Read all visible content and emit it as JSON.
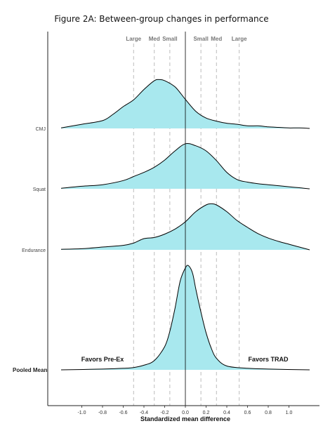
{
  "title": "Figure 2A: Between-group changes in performance",
  "chart_data": {
    "type": "density_ridgeline",
    "title": "Figure 2A: Between-group changes in performance",
    "xlabel": "Standardized mean difference",
    "ylabel": "",
    "xlim": [
      -1.2,
      1.2
    ],
    "x_ticks": [
      "-1.0",
      "-0.8",
      "-0.6",
      "-0.4",
      "-0.2",
      "0.0",
      "0.2",
      "0.4",
      "0.6",
      "0.8",
      "1.0"
    ],
    "categories": [
      "CMJ",
      "Squat",
      "Endurance",
      "Pooled Mean"
    ],
    "reference_lines": [
      {
        "label": "Large",
        "x": -0.5
      },
      {
        "label": "Med",
        "x": -0.3
      },
      {
        "label": "Small",
        "x": -0.15
      },
      {
        "label": "",
        "x": 0.0
      },
      {
        "label": "Small",
        "x": 0.15
      },
      {
        "label": "Med",
        "x": 0.3
      },
      {
        "label": "Large",
        "x": 0.52
      }
    ],
    "annotations": {
      "left": "Favors Pre-Ex",
      "right": "Favors TRAD"
    },
    "fill_color": "#a8e8ee",
    "series": [
      {
        "name": "CMJ",
        "x": [
          -1.2,
          -1.0,
          -0.8,
          -0.7,
          -0.6,
          -0.5,
          -0.4,
          -0.3,
          -0.25,
          -0.2,
          -0.1,
          0.0,
          0.1,
          0.2,
          0.3,
          0.4,
          0.5,
          0.6,
          0.7,
          0.8,
          0.9,
          1.0,
          1.1,
          1.2
        ],
        "density": [
          0.01,
          0.08,
          0.15,
          0.27,
          0.42,
          0.55,
          0.75,
          0.92,
          0.94,
          0.92,
          0.8,
          0.56,
          0.33,
          0.2,
          0.14,
          0.1,
          0.08,
          0.05,
          0.05,
          0.03,
          0.02,
          0.01,
          0.01,
          0.0
        ]
      },
      {
        "name": "Squat",
        "x": [
          -1.2,
          -1.0,
          -0.8,
          -0.6,
          -0.5,
          -0.4,
          -0.3,
          -0.2,
          -0.1,
          0.0,
          0.1,
          0.2,
          0.3,
          0.4,
          0.5,
          0.6,
          0.7,
          0.8,
          0.9,
          1.0,
          1.1,
          1.2
        ],
        "density": [
          0.01,
          0.05,
          0.08,
          0.16,
          0.24,
          0.32,
          0.42,
          0.56,
          0.74,
          0.88,
          0.84,
          0.74,
          0.55,
          0.32,
          0.18,
          0.13,
          0.1,
          0.08,
          0.06,
          0.04,
          0.02,
          0.0
        ]
      },
      {
        "name": "Endurance",
        "x": [
          -1.2,
          -1.0,
          -0.8,
          -0.6,
          -0.5,
          -0.4,
          -0.3,
          -0.2,
          -0.1,
          0.0,
          0.1,
          0.2,
          0.25,
          0.3,
          0.4,
          0.5,
          0.6,
          0.7,
          0.8,
          0.9,
          1.0,
          1.1,
          1.2
        ],
        "density": [
          0.01,
          0.02,
          0.05,
          0.08,
          0.12,
          0.2,
          0.22,
          0.28,
          0.37,
          0.5,
          0.68,
          0.8,
          0.82,
          0.8,
          0.68,
          0.52,
          0.4,
          0.29,
          0.21,
          0.15,
          0.1,
          0.05,
          0.0
        ]
      },
      {
        "name": "Pooled Mean",
        "x": [
          -1.2,
          -0.8,
          -0.6,
          -0.5,
          -0.4,
          -0.3,
          -0.2,
          -0.15,
          -0.1,
          -0.05,
          0.0,
          0.03,
          0.07,
          0.1,
          0.15,
          0.2,
          0.25,
          0.3,
          0.4,
          0.6,
          0.8,
          1.2
        ],
        "density": [
          0.0,
          0.01,
          0.02,
          0.03,
          0.06,
          0.12,
          0.3,
          0.5,
          0.8,
          1.15,
          1.32,
          1.35,
          1.25,
          1.05,
          0.75,
          0.48,
          0.28,
          0.15,
          0.05,
          0.02,
          0.01,
          0.0
        ]
      }
    ]
  }
}
